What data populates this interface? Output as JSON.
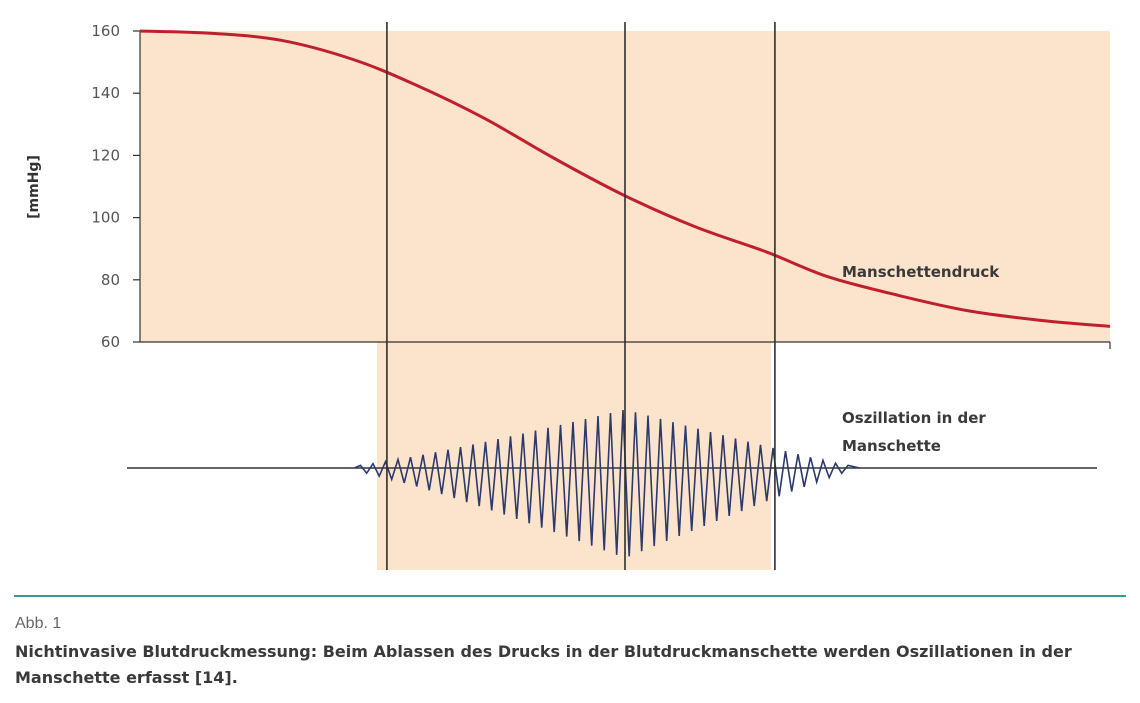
{
  "chart_data": {
    "type": "line",
    "ylabel": "[mmHg]",
    "ylim": [
      60,
      160
    ],
    "yticks": [
      60,
      80,
      100,
      120,
      140,
      160
    ],
    "grid": false,
    "series": [
      {
        "name": "Manschettendruck",
        "color": "#c0202d",
        "points": [
          [
            0,
            160
          ],
          [
            0.08,
            159.3
          ],
          [
            0.16,
            157
          ],
          [
            0.24,
            151
          ],
          [
            0.31,
            143
          ],
          [
            0.39,
            132
          ],
          [
            0.47,
            119
          ],
          [
            0.55,
            107
          ],
          [
            0.63,
            97
          ],
          [
            0.71,
            89
          ],
          [
            0.78,
            81
          ],
          [
            0.86,
            75
          ],
          [
            0.94,
            70
          ],
          [
            1.02,
            67
          ],
          [
            1.1,
            65
          ]
        ]
      },
      {
        "name": "Oszillation in der Manschette",
        "color": "#2b3a6b",
        "envelope_peak_position": 0.55,
        "envelope_start": 0.25,
        "envelope_end": 0.8
      }
    ],
    "markers": {
      "vertical_lines": [
        0.28,
        0.55,
        0.72
      ],
      "line_color": "#2e2e2e",
      "shading_color": "#fce3cc"
    },
    "annotations": [
      {
        "text": "Manschettendruck",
        "target": "pressure-curve"
      },
      {
        "text": "Oszillation in der",
        "target": "oscillation"
      },
      {
        "text": "Manschette",
        "target": "oscillation"
      }
    ]
  },
  "caption": {
    "label": "Abb. 1",
    "text": "Nichtinvasive Blutdruckmessung: Beim Ablassen des Drucks in der Blutdruckmanschette werden Oszillationen in der Manschette erfasst [14]."
  }
}
